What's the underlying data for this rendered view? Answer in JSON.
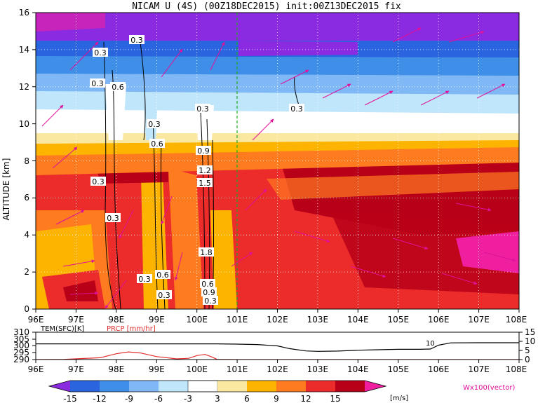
{
  "chart_data": [
    {
      "type": "heatmap",
      "title": "NICAM U (4S) (00Z18DEC2015) init:00Z13DEC2015 fix",
      "xlabel": "",
      "ylabel": "ALTITUDE [km]",
      "x_ticks": [
        "96E",
        "97E",
        "98E",
        "99E",
        "100E",
        "101E",
        "102E",
        "103E",
        "104E",
        "105E",
        "106E",
        "107E",
        "108E"
      ],
      "y_ticks": [
        "0",
        "2",
        "4",
        "6",
        "8",
        "10",
        "12",
        "14",
        "16"
      ],
      "xlim": [
        96,
        108
      ],
      "ylim": [
        0,
        16
      ],
      "grid": true,
      "marker_line_lon": 101,
      "contour_labels": [
        "0.3",
        "0.3",
        "0.3",
        "0.6",
        "0.3",
        "0.3",
        "0.6",
        "0.9",
        "1.2",
        "1.5",
        "0.3",
        "0.3",
        "0.6",
        "0.3",
        "1.8",
        "0.3",
        "0.6",
        "0.9",
        "0.3",
        "0.3"
      ],
      "colorbar": {
        "levels": [
          "-15",
          "-12",
          "-9",
          "-6",
          "-3",
          "3",
          "6",
          "9",
          "12",
          "15"
        ],
        "unit": "[m/s]",
        "colors": [
          "#8a2be2",
          "#2a64de",
          "#3f8fe9",
          "#7fb8f5",
          "#bfe6fb",
          "#ffffff",
          "#fbe8a0",
          "#fdb400",
          "#ff7b20",
          "#ec2b2b",
          "#b80018",
          "#ef1fa0"
        ]
      },
      "vector_label": "Wx100(vector)",
      "vector_color": "#e0109a"
    },
    {
      "type": "line",
      "labels": [
        "TEM(SFC)[K]",
        "PRCP [mm/hr]"
      ],
      "label_colors": [
        "#000000",
        "#e03030"
      ],
      "x_ticks": [
        "96E",
        "97E",
        "98E",
        "99E",
        "100E",
        "101E",
        "102E",
        "103E",
        "104E",
        "105E",
        "106E",
        "107E",
        "108E"
      ],
      "y_left_ticks": [
        "310",
        "305",
        "300",
        "295",
        "290"
      ],
      "y_right_ticks": [
        "15",
        "10",
        "5",
        "0"
      ],
      "annotation": "10",
      "series": [
        {
          "name": "TEM(SFC)[K]",
          "color": "#000000",
          "x": [
            96,
            97,
            98,
            99,
            100,
            100.5,
            101,
            101.5,
            102,
            102.3,
            102.7,
            103,
            103.5,
            104,
            104.5,
            105,
            105.5,
            105.8,
            106,
            106.3,
            107,
            108
          ],
          "values": [
            301.5,
            301.5,
            301.5,
            301.5,
            301.5,
            301.5,
            301.3,
            301,
            300,
            298,
            296.3,
            296,
            296.2,
            296.8,
            297.2,
            297.5,
            297.5,
            297.7,
            300.5,
            302.2,
            302.3,
            302.3
          ]
        },
        {
          "name": "PRCP [mm/hr]",
          "color": "#e03030",
          "x": [
            96,
            96.7,
            97.2,
            97.6,
            98,
            98.3,
            98.6,
            99,
            99.5,
            99.8,
            100,
            100.2,
            100.35,
            100.5,
            101,
            108
          ],
          "values": [
            0,
            0.1,
            0.6,
            1.0,
            3.2,
            4.2,
            3.6,
            1.6,
            0.4,
            0.7,
            2.2,
            2.8,
            1.6,
            0.1,
            0,
            0
          ]
        }
      ]
    }
  ]
}
